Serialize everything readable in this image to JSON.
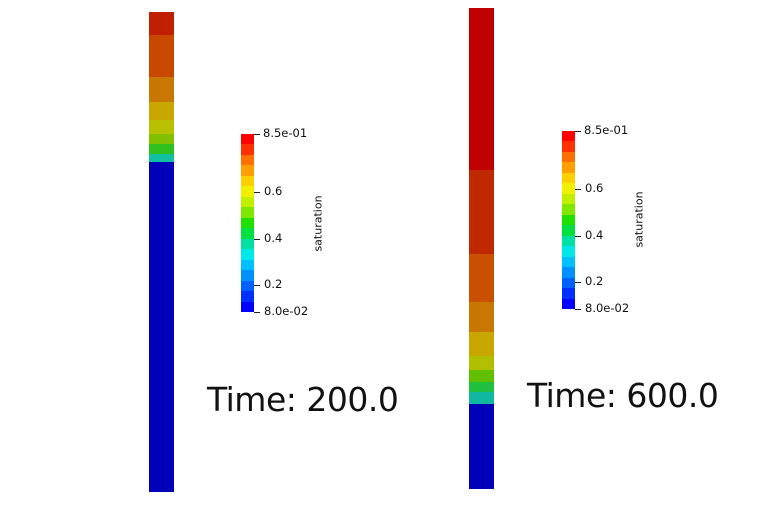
{
  "panels": [
    {
      "time_label": "Time: 200.0",
      "colorbar": {
        "title": "saturation",
        "max_label": "8.5e-01",
        "min_label": "8.0e-02",
        "ticks": [
          "0.6",
          "0.4",
          "0.2"
        ],
        "tick_values": [
          0.6,
          0.4,
          0.2
        ],
        "range": [
          0.08,
          0.85
        ]
      },
      "column_segments": [
        {
          "color": "#c02000",
          "saturation": 0.85
        },
        {
          "color": "#c84800",
          "saturation": 0.8
        },
        {
          "color": "#c87800",
          "saturation": 0.75
        },
        {
          "color": "#c8a800",
          "saturation": 0.7
        },
        {
          "color": "#b8c000",
          "saturation": 0.65
        },
        {
          "color": "#80c000",
          "saturation": 0.6
        },
        {
          "color": "#30c020",
          "saturation": 0.55
        },
        {
          "color": "#10c0a0",
          "saturation": 0.35
        },
        {
          "color": "#0000b8",
          "saturation": 0.08
        }
      ]
    },
    {
      "time_label": "Time: 600.0",
      "colorbar": {
        "title": "saturation",
        "max_label": "8.5e-01",
        "min_label": "8.0e-02",
        "ticks": [
          "0.6",
          "0.4",
          "0.2"
        ],
        "tick_values": [
          0.6,
          0.4,
          0.2
        ],
        "range": [
          0.08,
          0.85
        ]
      },
      "column_segments": [
        {
          "color": "#c00000",
          "saturation": 0.85
        },
        {
          "color": "#c02800",
          "saturation": 0.82
        },
        {
          "color": "#c85000",
          "saturation": 0.78
        },
        {
          "color": "#c87800",
          "saturation": 0.74
        },
        {
          "color": "#c8a800",
          "saturation": 0.7
        },
        {
          "color": "#b0c000",
          "saturation": 0.65
        },
        {
          "color": "#60c000",
          "saturation": 0.6
        },
        {
          "color": "#20c040",
          "saturation": 0.5
        },
        {
          "color": "#10b8a0",
          "saturation": 0.35
        },
        {
          "color": "#0000b8",
          "saturation": 0.08
        }
      ]
    }
  ],
  "colormap": [
    "#0000ff",
    "#0030ff",
    "#0060ff",
    "#0090ff",
    "#00c0ff",
    "#00e8e8",
    "#00e0a0",
    "#00e040",
    "#20e000",
    "#80e800",
    "#c0f000",
    "#f0f000",
    "#ffd000",
    "#ffa000",
    "#ff7000",
    "#ff3000",
    "#ff0000"
  ]
}
